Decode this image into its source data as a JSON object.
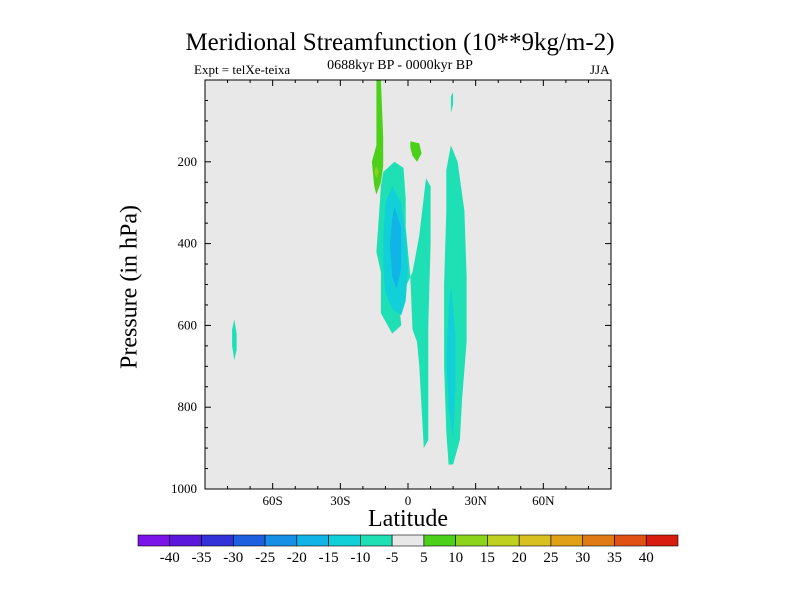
{
  "chart_data": {
    "type": "contour",
    "title": "Meridional Streamfunction (10**9kg/m-2)",
    "subtitle_left": "Expt = telXe-teixa",
    "subtitle_center": "0688kyr BP - 0000kyr BP",
    "subtitle_right": "JJA",
    "xlabel": "Latitude",
    "ylabel": "Pressure (in hPa)",
    "xlim": [
      -90,
      90
    ],
    "ylim": [
      1000,
      0
    ],
    "x_ticks": [
      {
        "value": -60,
        "label": "60S"
      },
      {
        "value": -30,
        "label": "30S"
      },
      {
        "value": 0,
        "label": "0"
      },
      {
        "value": 30,
        "label": "30N"
      },
      {
        "value": 60,
        "label": "60N"
      }
    ],
    "y_ticks": [
      {
        "value": 200,
        "label": "200"
      },
      {
        "value": 400,
        "label": "400"
      },
      {
        "value": 600,
        "label": "600"
      },
      {
        "value": 800,
        "label": "800"
      },
      {
        "value": 1000,
        "label": "1000"
      }
    ],
    "contour_regions": [
      {
        "name": "weak-negative-far-south",
        "level": -5,
        "points": [
          [
            -77,
            585
          ],
          [
            -76,
            620
          ],
          [
            -76,
            660
          ],
          [
            -77,
            685
          ],
          [
            -78,
            650
          ],
          [
            -78,
            610
          ]
        ]
      },
      {
        "name": "negative-cell-main",
        "level": -5,
        "points": [
          [
            -11,
            225
          ],
          [
            -6,
            200
          ],
          [
            -2,
            215
          ],
          [
            -1,
            290
          ],
          [
            -1,
            360
          ],
          [
            1,
            480
          ],
          [
            2,
            610
          ],
          [
            4,
            640
          ],
          [
            5,
            700
          ],
          [
            7,
            900
          ],
          [
            9,
            880
          ],
          [
            9,
            600
          ],
          [
            10,
            400
          ],
          [
            10,
            260
          ],
          [
            8,
            240
          ],
          [
            5,
            380
          ],
          [
            2,
            470
          ],
          [
            -4,
            540
          ],
          [
            -3,
            600
          ],
          [
            -7,
            620
          ],
          [
            -12,
            570
          ],
          [
            -12,
            470
          ],
          [
            -14,
            420
          ],
          [
            -13,
            340
          ],
          [
            -12,
            260
          ]
        ]
      },
      {
        "name": "negative-cell-core-outer",
        "level": -10,
        "points": [
          [
            -7,
            260
          ],
          [
            -3,
            300
          ],
          [
            -1,
            380
          ],
          [
            0,
            460
          ],
          [
            -1,
            540
          ],
          [
            -3,
            575
          ],
          [
            -7,
            560
          ],
          [
            -10,
            520
          ],
          [
            -11,
            460
          ],
          [
            -11,
            380
          ],
          [
            -10,
            300
          ]
        ]
      },
      {
        "name": "negative-cell-core-inner",
        "level": -15,
        "points": [
          [
            -6,
            310
          ],
          [
            -3,
            360
          ],
          [
            -3,
            460
          ],
          [
            -5,
            510
          ],
          [
            -7,
            480
          ],
          [
            -8,
            400
          ],
          [
            -7,
            340
          ]
        ]
      },
      {
        "name": "negative-cell-north",
        "level": -5,
        "points": [
          [
            19,
            160
          ],
          [
            22,
            200
          ],
          [
            25,
            320
          ],
          [
            26,
            480
          ],
          [
            26,
            640
          ],
          [
            24,
            780
          ],
          [
            23,
            880
          ],
          [
            20,
            940
          ],
          [
            18,
            940
          ],
          [
            17,
            860
          ],
          [
            16,
            700
          ],
          [
            16,
            500
          ],
          [
            17,
            320
          ],
          [
            17,
            220
          ]
        ]
      },
      {
        "name": "negative-cell-north-core",
        "level": -10,
        "points": [
          [
            19,
            500
          ],
          [
            21,
            620
          ],
          [
            21,
            760
          ],
          [
            20,
            880
          ],
          [
            18,
            800
          ],
          [
            17,
            680
          ],
          [
            18,
            560
          ]
        ]
      },
      {
        "name": "negative-sliver-upper",
        "level": -5,
        "points": [
          [
            20,
            30
          ],
          [
            20,
            60
          ],
          [
            19,
            80
          ],
          [
            19,
            40
          ]
        ]
      },
      {
        "name": "positive-plume-upper",
        "level": 5,
        "points": [
          [
            -14,
            0
          ],
          [
            -12,
            0
          ],
          [
            -11,
            140
          ],
          [
            -11,
            210
          ],
          [
            -12,
            250
          ],
          [
            -14,
            280
          ],
          [
            -15,
            260
          ],
          [
            -16,
            200
          ],
          [
            -14,
            160
          ],
          [
            -14,
            80
          ]
        ]
      },
      {
        "name": "positive-plume-core",
        "level": 10,
        "points": [
          [
            -14,
            210
          ],
          [
            -13,
            225
          ],
          [
            -14,
            240
          ],
          [
            -15,
            225
          ]
        ]
      },
      {
        "name": "positive-blob-upper",
        "level": 5,
        "points": [
          [
            1,
            150
          ],
          [
            5,
            155
          ],
          [
            6,
            180
          ],
          [
            4,
            200
          ],
          [
            2,
            185
          ],
          [
            1,
            165
          ]
        ]
      }
    ],
    "colorbar": {
      "levels": [
        -40,
        -35,
        -30,
        -25,
        -20,
        -15,
        -10,
        -5,
        5,
        10,
        15,
        20,
        25,
        30,
        35,
        40
      ],
      "colors": [
        "#7b14e8",
        "#5b18dc",
        "#3232d8",
        "#1e5fe0",
        "#188fe6",
        "#10b4e6",
        "#12d0d8",
        "#1ee0b4",
        "#e8e8e8",
        "#4cd01a",
        "#8cd41c",
        "#c0d020",
        "#d8c020",
        "#e0a018",
        "#e07a14",
        "#e05214",
        "#d81c10"
      ]
    },
    "plot_background": "#e8e8e8"
  }
}
